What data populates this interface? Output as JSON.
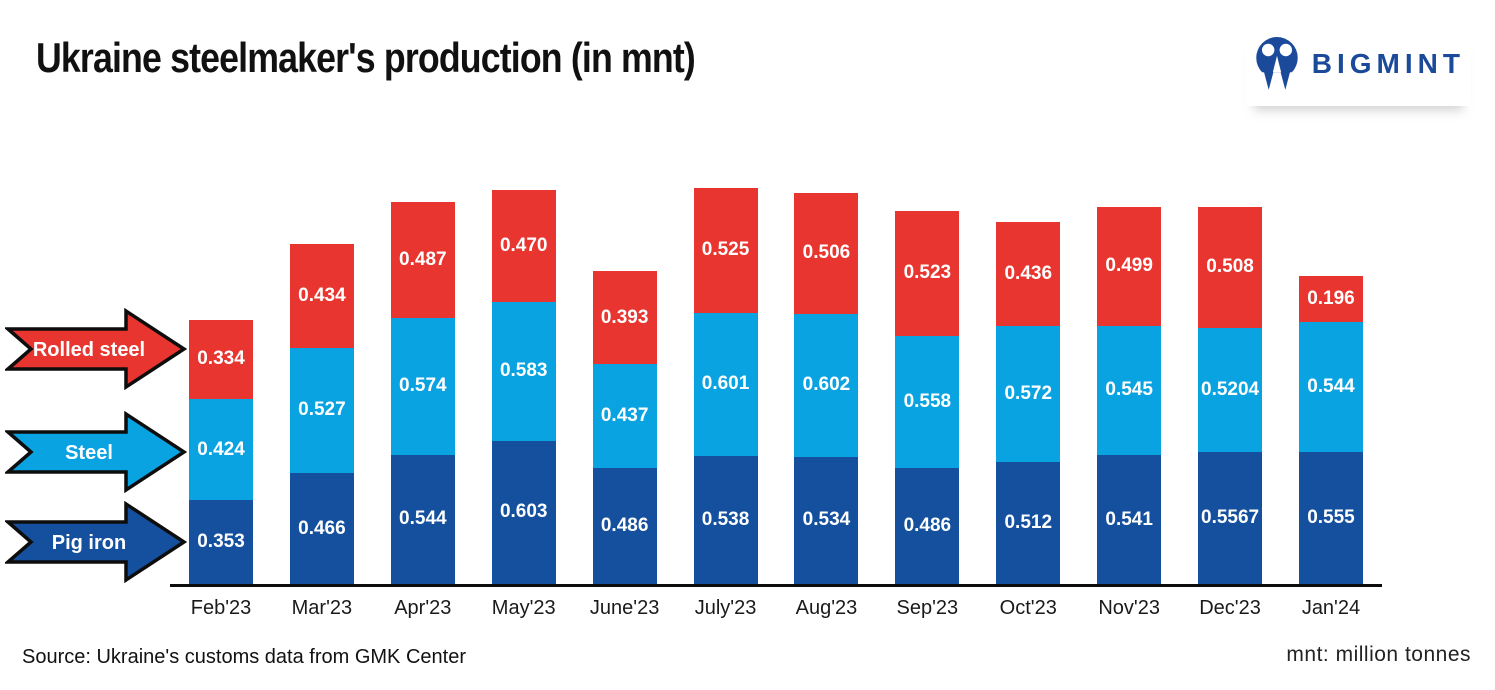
{
  "header": {
    "title": "Ukraine steelmaker's production (in mnt)",
    "brand": "BIGMINT"
  },
  "chart_data": {
    "type": "bar",
    "stacked": true,
    "title": "Ukraine steelmaker's production (in mnt)",
    "unit": "mnt (million tonnes)",
    "legend_position": "left-arrows",
    "x_axis": {
      "line": true
    },
    "y_axis": {
      "visible": false
    },
    "categories": [
      "Feb'23",
      "Mar'23",
      "Apr'23",
      "May'23",
      "June'23",
      "July'23",
      "Aug'23",
      "Sep'23",
      "Oct'23",
      "Nov'23",
      "Dec'23",
      "Jan'24"
    ],
    "series": [
      {
        "name": "Pig iron",
        "key": "pig-iron",
        "color": "#14509E",
        "values": [
          "0.353",
          "0.466",
          "0.544",
          "0.603",
          "0.486",
          "0.538",
          "0.534",
          "0.486",
          "0.512",
          "0.541",
          "0.5567",
          "0.555"
        ]
      },
      {
        "name": "Steel",
        "key": "steel",
        "color": "#0AA3E1",
        "values": [
          "0.424",
          "0.527",
          "0.574",
          "0.583",
          "0.437",
          "0.601",
          "0.602",
          "0.558",
          "0.572",
          "0.545",
          "0.5204",
          "0.544"
        ]
      },
      {
        "name": "Rolled steel",
        "key": "rolled-steel",
        "color": "#E8352F",
        "values": [
          "0.334",
          "0.434",
          "0.487",
          "0.470",
          "0.393",
          "0.525",
          "0.506",
          "0.523",
          "0.436",
          "0.499",
          "0.508",
          "0.196"
        ]
      }
    ]
  },
  "footer": {
    "source": "Source: Ukraine's customs data from GMK Center",
    "note": "mnt: million tonnes"
  }
}
